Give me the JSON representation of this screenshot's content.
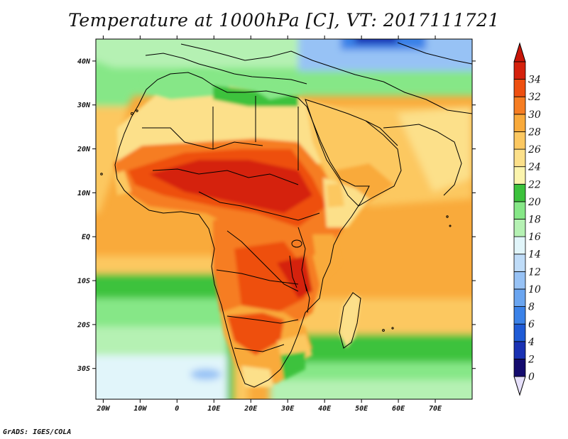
{
  "title": "Temperature at 1000hPa [C], VT: 2017111721",
  "footer": "GrADS: IGES/COLA",
  "map": {
    "lat_ticks": [
      "40N",
      "30N",
      "20N",
      "10N",
      "EQ",
      "10S",
      "20S",
      "30S"
    ],
    "lat_values": [
      40,
      30,
      20,
      10,
      0,
      -10,
      -20,
      -30
    ],
    "lon_ticks": [
      "20W",
      "10W",
      "0",
      "10E",
      "20E",
      "30E",
      "40E",
      "50E",
      "60E",
      "70E"
    ],
    "lon_values": [
      -20,
      -10,
      0,
      10,
      20,
      30,
      40,
      50,
      60,
      70
    ],
    "lon_range": [
      -22,
      80
    ],
    "lat_range": [
      -37,
      45
    ]
  },
  "colorbar": {
    "labels": [
      "0",
      "2",
      "4",
      "6",
      "8",
      "10",
      "12",
      "14",
      "16",
      "18",
      "20",
      "22",
      "24",
      "26",
      "28",
      "30",
      "32",
      "34"
    ],
    "colors": [
      "#140b6e",
      "#1a31b3",
      "#1f5bd6",
      "#3b82e8",
      "#6aa5f0",
      "#97c2f5",
      "#bfdcf8",
      "#e1f5fa",
      "#b5f1b3",
      "#86e787",
      "#3cc23c",
      "#fbf4ad",
      "#fce08a",
      "#fcc861",
      "#f9aa3b",
      "#f67d22",
      "#ee4f10",
      "#d5210c"
    ],
    "under_color": "#e6e0fa",
    "over_color": "#c81508"
  },
  "colors": {
    "ocean_warm": "#f9aa3b",
    "ocean_mid": "#fcc861",
    "ocean_cool": "#86e787",
    "land_hot": "#ee4f10",
    "land_very_hot": "#d5210c",
    "coast_line": "#000000"
  }
}
